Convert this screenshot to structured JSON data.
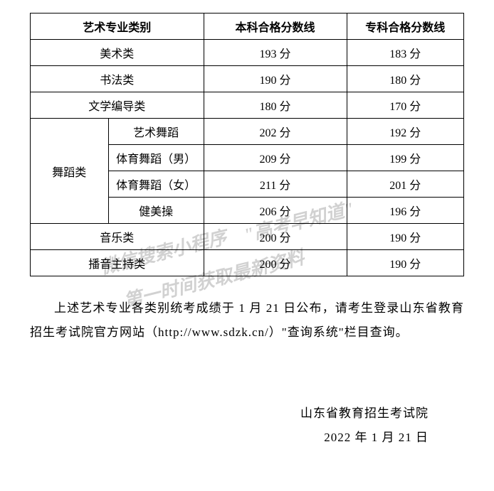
{
  "table": {
    "headers": [
      "艺术专业类别",
      "本科合格分数线",
      "专科合格分数线"
    ],
    "rows": [
      {
        "category": "美术类",
        "benke": "193 分",
        "zhuanke": "183 分"
      },
      {
        "category": "书法类",
        "benke": "190 分",
        "zhuanke": "180 分"
      },
      {
        "category": "文学编导类",
        "benke": "180 分",
        "zhuanke": "170 分"
      }
    ],
    "dance_group": {
      "label": "舞蹈类",
      "subrows": [
        {
          "name": "艺术舞蹈",
          "benke": "202 分",
          "zhuanke": "192 分"
        },
        {
          "name": "体育舞蹈（男）",
          "benke": "209 分",
          "zhuanke": "199 分"
        },
        {
          "name": "体育舞蹈（女）",
          "benke": "211 分",
          "zhuanke": "201 分"
        },
        {
          "name": "健美操",
          "benke": "206 分",
          "zhuanke": "196 分"
        }
      ]
    },
    "rows_after": [
      {
        "category": "音乐类",
        "benke": "200 分",
        "zhuanke": "190 分"
      },
      {
        "category": "播音主持类",
        "benke": "200 分",
        "zhuanke": "190 分"
      }
    ]
  },
  "paragraph": "上述艺术专业各类别统考成绩于 1 月 21 日公布，请考生登录山东省教育招生考试院官方网站（http://www.sdzk.cn/）\"查询系统\"栏目查询。",
  "signature": {
    "org": "山东省教育招生考试院",
    "date": "2022 年 1 月 21 日"
  },
  "watermark": {
    "line1": "\"高考早知道\"",
    "line2": "微信搜索小程序",
    "line3": "第一时间获取最新资料"
  },
  "colors": {
    "text": "#000000",
    "background": "#ffffff",
    "border": "#000000",
    "watermark": "rgba(0,0,0,0.18)"
  }
}
